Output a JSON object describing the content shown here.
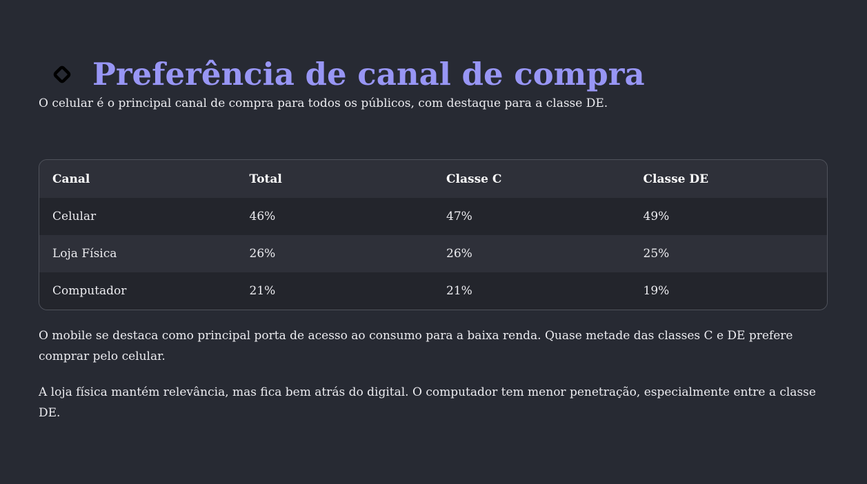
{
  "header": {
    "title": "Preferência de canal de compra",
    "icon": "diamond-icon",
    "title_color": "#9896f5"
  },
  "subtitle": "O celular é o principal canal de compra para todos os públicos, com destaque para a classe DE.",
  "table": {
    "columns": [
      "Canal",
      "Total",
      "Classe C",
      "Classe DE"
    ],
    "rows": [
      [
        "Celular",
        "46%",
        "47%",
        "49%"
      ],
      [
        "Loja Física",
        "26%",
        "26%",
        "25%"
      ],
      [
        "Computador",
        "21%",
        "21%",
        "19%"
      ]
    ]
  },
  "paragraphs": [
    "O mobile se destaca como principal porta de acesso ao consumo para a baixa renda. Quase metade das classes C e DE prefere comprar pelo celular.",
    "A loja física mantém relevância, mas fica bem atrás do digital. O computador tem menor penetração, especialmente entre a classe DE."
  ]
}
